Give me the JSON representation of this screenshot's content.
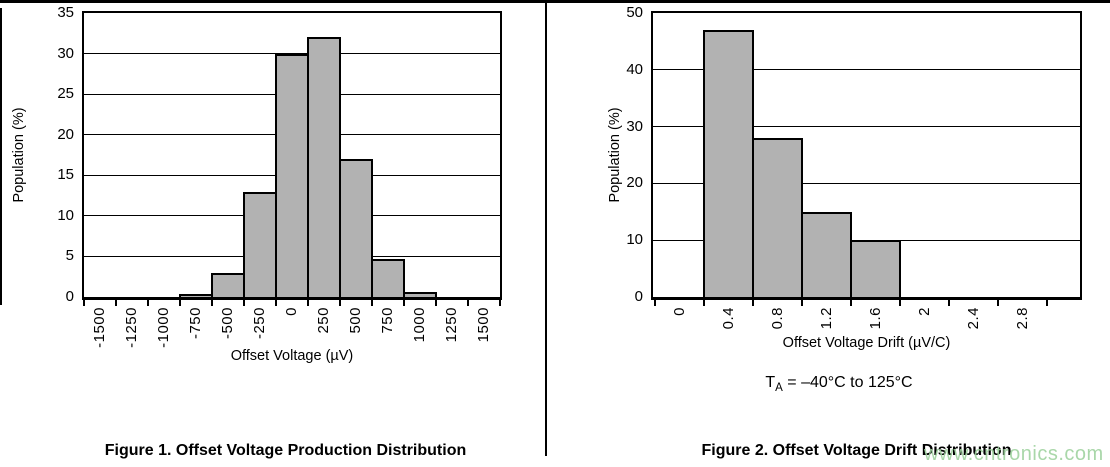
{
  "watermark": {
    "text": "www.cntronics.com",
    "color": "#9ed29e"
  },
  "colors": {
    "bar_fill": "#b2b2b2",
    "bar_border": "#000000",
    "grid": "#000000",
    "text": "#000000",
    "background": "#ffffff"
  },
  "chart_data": [
    {
      "type": "bar",
      "caption": "Figure 1. Offset Voltage Production Distribution",
      "xlabel": "Offset Voltage (µV)",
      "ylabel": "Population (%)",
      "ylim": [
        0,
        35
      ],
      "ytick_step": 5,
      "yticks": [
        0,
        5,
        10,
        15,
        20,
        25,
        30,
        35
      ],
      "grid": "horizontal",
      "legend": "none",
      "categories": [
        "-1500",
        "-1250",
        "-1000",
        "-750",
        "-500",
        "-250",
        "0",
        "250",
        "500",
        "750",
        "1000",
        "1250",
        "1500"
      ],
      "values": [
        0,
        0,
        0,
        0.3,
        3,
        13,
        30,
        32,
        17,
        4.7,
        0.6,
        0,
        0
      ]
    },
    {
      "type": "bar",
      "caption": "Figure 2. Offset Voltage Drift Distribution",
      "xlabel": "Offset Voltage Drift (µV/C)",
      "ylabel": "Population (%)",
      "ylim": [
        0,
        50
      ],
      "ytick_step": 10,
      "yticks": [
        0,
        10,
        20,
        30,
        40,
        50
      ],
      "grid": "horizontal",
      "legend": "none",
      "categories": [
        "0",
        "0.4",
        "0.8",
        "1.2",
        "1.6",
        "2",
        "2.4",
        "2.8"
      ],
      "values": [
        0,
        47,
        28,
        15,
        10,
        0,
        0,
        0
      ],
      "annotation": {
        "t": "T",
        "sub": "A",
        "rest": " = –40°C to 125°C"
      }
    }
  ]
}
